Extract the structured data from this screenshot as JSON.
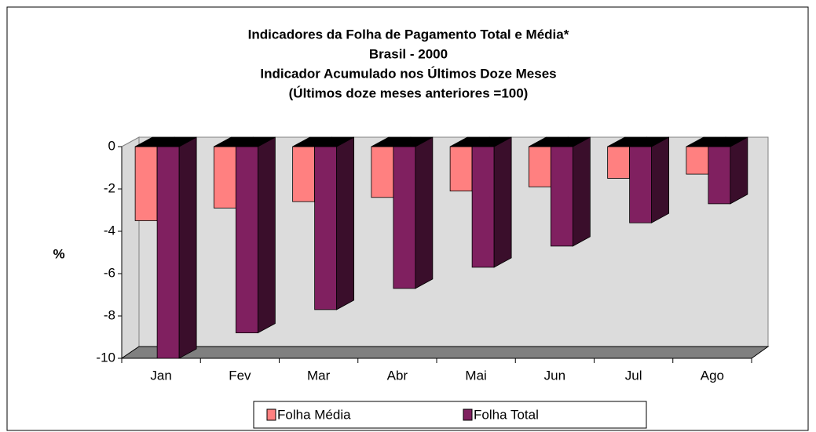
{
  "chart_data": {
    "type": "bar3d",
    "title": [
      "Indicadores da Folha de Pagamento Total e Média*",
      "Brasil - 2000",
      "Indicador Acumulado nos Últimos Doze Meses",
      "(Últimos doze meses anteriores =100)"
    ],
    "y_label": "%",
    "categories": [
      "Jan",
      "Fev",
      "Mar",
      "Abr",
      "Mai",
      "Jun",
      "Jul",
      "Ago"
    ],
    "series": [
      {
        "name": "Folha Média",
        "color": "#ff8080",
        "values": [
          -3.5,
          -2.9,
          -2.6,
          -2.4,
          -2.1,
          -1.9,
          -1.5,
          -1.3
        ]
      },
      {
        "name": "Folha Total",
        "color": "#802060",
        "values": [
          -10.0,
          -8.8,
          -7.7,
          -6.7,
          -5.7,
          -4.7,
          -3.6,
          -2.7
        ]
      }
    ],
    "ylim": [
      -10,
      0
    ],
    "yticks": [
      0,
      -2,
      -4,
      -6,
      -8,
      -10
    ]
  }
}
